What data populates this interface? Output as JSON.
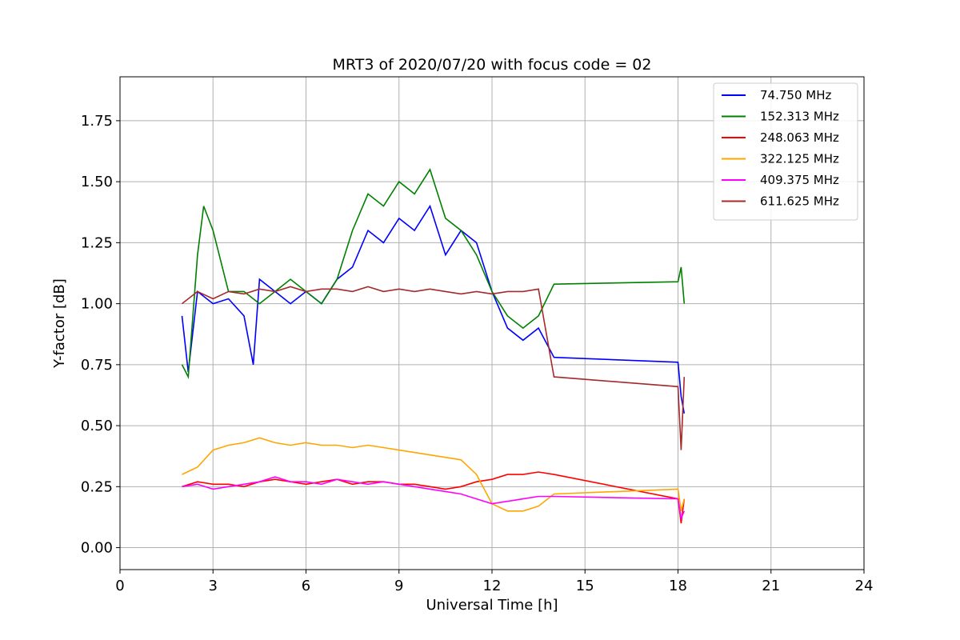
{
  "chart_data": {
    "type": "line",
    "title": "MRT3 of 2020/07/20 with focus code = 02",
    "xlabel": "Universal Time [h]",
    "ylabel": "Y-factor [dB]",
    "xlim": [
      0,
      24
    ],
    "ylim": [
      -0.09,
      1.93
    ],
    "xticks": [
      0,
      3,
      6,
      9,
      12,
      15,
      18,
      21,
      24
    ],
    "xtick_labels": [
      "0",
      "3",
      "6",
      "9",
      "12",
      "15",
      "18",
      "21",
      "24"
    ],
    "yticks": [
      0.0,
      0.25,
      0.5,
      0.75,
      1.0,
      1.25,
      1.5,
      1.75
    ],
    "ytick_labels": [
      "0.00",
      "0.25",
      "0.50",
      "0.75",
      "1.00",
      "1.25",
      "1.50",
      "1.75"
    ],
    "grid": true,
    "legend_position": "top-right",
    "series": [
      {
        "name": " 74.750 MHz",
        "color": "#0000ff",
        "x": [
          2.0,
          2.2,
          2.5,
          3.0,
          3.5,
          4.0,
          4.3,
          4.5,
          5.0,
          5.5,
          6.0,
          6.5,
          7.0,
          7.5,
          8.0,
          8.5,
          9.0,
          9.5,
          10.0,
          10.5,
          11.0,
          11.5,
          12.0,
          12.5,
          13.0,
          13.5,
          14.0,
          18.0,
          18.1,
          18.2
        ],
        "y": [
          0.95,
          0.72,
          1.05,
          1.0,
          1.02,
          0.95,
          0.75,
          1.1,
          1.05,
          1.0,
          1.05,
          1.0,
          1.1,
          1.15,
          1.3,
          1.25,
          1.35,
          1.3,
          1.4,
          1.2,
          1.3,
          1.25,
          1.05,
          0.9,
          0.85,
          0.9,
          0.78,
          0.76,
          0.62,
          0.55
        ]
      },
      {
        "name": "152.313 MHz",
        "color": "#008000",
        "x": [
          2.0,
          2.2,
          2.5,
          2.7,
          3.0,
          3.5,
          4.0,
          4.5,
          5.0,
          5.5,
          6.0,
          6.5,
          7.0,
          7.5,
          8.0,
          8.5,
          9.0,
          9.5,
          10.0,
          10.5,
          11.0,
          11.5,
          12.0,
          12.5,
          13.0,
          13.5,
          14.0,
          18.0,
          18.1,
          18.2
        ],
        "y": [
          0.75,
          0.7,
          1.2,
          1.4,
          1.3,
          1.05,
          1.05,
          1.0,
          1.05,
          1.1,
          1.05,
          1.0,
          1.1,
          1.3,
          1.45,
          1.4,
          1.5,
          1.45,
          1.55,
          1.35,
          1.3,
          1.2,
          1.05,
          0.95,
          0.9,
          0.95,
          1.08,
          1.09,
          1.15,
          1.0
        ]
      },
      {
        "name": "248.063 MHz",
        "color": "#ff0000",
        "x": [
          2.0,
          2.5,
          3.0,
          3.5,
          4.0,
          4.5,
          5.0,
          5.5,
          6.0,
          6.5,
          7.0,
          7.5,
          8.0,
          8.5,
          9.0,
          9.5,
          10.0,
          10.5,
          11.0,
          11.5,
          12.0,
          12.5,
          13.0,
          13.5,
          14.0,
          18.0,
          18.1,
          18.2
        ],
        "y": [
          0.25,
          0.27,
          0.26,
          0.26,
          0.25,
          0.27,
          0.28,
          0.27,
          0.26,
          0.27,
          0.28,
          0.26,
          0.27,
          0.27,
          0.26,
          0.26,
          0.25,
          0.24,
          0.25,
          0.27,
          0.28,
          0.3,
          0.3,
          0.31,
          0.3,
          0.2,
          0.1,
          0.2
        ]
      },
      {
        "name": "322.125 MHz",
        "color": "#ffa500",
        "x": [
          2.0,
          2.5,
          3.0,
          3.5,
          4.0,
          4.5,
          5.0,
          5.5,
          6.0,
          6.5,
          7.0,
          7.5,
          8.0,
          8.5,
          9.0,
          9.5,
          10.0,
          10.5,
          11.0,
          11.5,
          12.0,
          12.5,
          13.0,
          13.5,
          14.0,
          18.0,
          18.1,
          18.2
        ],
        "y": [
          0.3,
          0.33,
          0.4,
          0.42,
          0.43,
          0.45,
          0.43,
          0.42,
          0.43,
          0.42,
          0.42,
          0.41,
          0.42,
          0.41,
          0.4,
          0.39,
          0.38,
          0.37,
          0.36,
          0.3,
          0.18,
          0.15,
          0.15,
          0.17,
          0.22,
          0.24,
          0.15,
          0.2
        ]
      },
      {
        "name": "409.375 MHz",
        "color": "#ff00ff",
        "x": [
          2.0,
          2.5,
          3.0,
          3.5,
          4.0,
          4.5,
          5.0,
          5.5,
          6.0,
          6.5,
          7.0,
          7.5,
          8.0,
          8.5,
          9.0,
          9.5,
          10.0,
          10.5,
          11.0,
          11.5,
          12.0,
          12.5,
          13.0,
          13.5,
          14.0,
          18.0,
          18.1,
          18.2
        ],
        "y": [
          0.25,
          0.26,
          0.24,
          0.25,
          0.26,
          0.27,
          0.29,
          0.27,
          0.27,
          0.26,
          0.28,
          0.27,
          0.26,
          0.27,
          0.26,
          0.25,
          0.24,
          0.23,
          0.22,
          0.2,
          0.18,
          0.19,
          0.2,
          0.21,
          0.21,
          0.2,
          0.12,
          0.15
        ]
      },
      {
        "name": "611.625 MHz",
        "color": "#a52a2a",
        "x": [
          2.0,
          2.5,
          3.0,
          3.5,
          4.0,
          4.5,
          5.0,
          5.5,
          6.0,
          6.5,
          7.0,
          7.5,
          8.0,
          8.5,
          9.0,
          9.5,
          10.0,
          10.5,
          11.0,
          11.5,
          12.0,
          12.5,
          13.0,
          13.5,
          14.0,
          18.0,
          18.1,
          18.2
        ],
        "y": [
          1.0,
          1.05,
          1.02,
          1.05,
          1.04,
          1.06,
          1.05,
          1.07,
          1.05,
          1.06,
          1.06,
          1.05,
          1.07,
          1.05,
          1.06,
          1.05,
          1.06,
          1.05,
          1.04,
          1.05,
          1.04,
          1.05,
          1.05,
          1.06,
          0.7,
          0.66,
          0.4,
          0.7
        ]
      }
    ]
  }
}
